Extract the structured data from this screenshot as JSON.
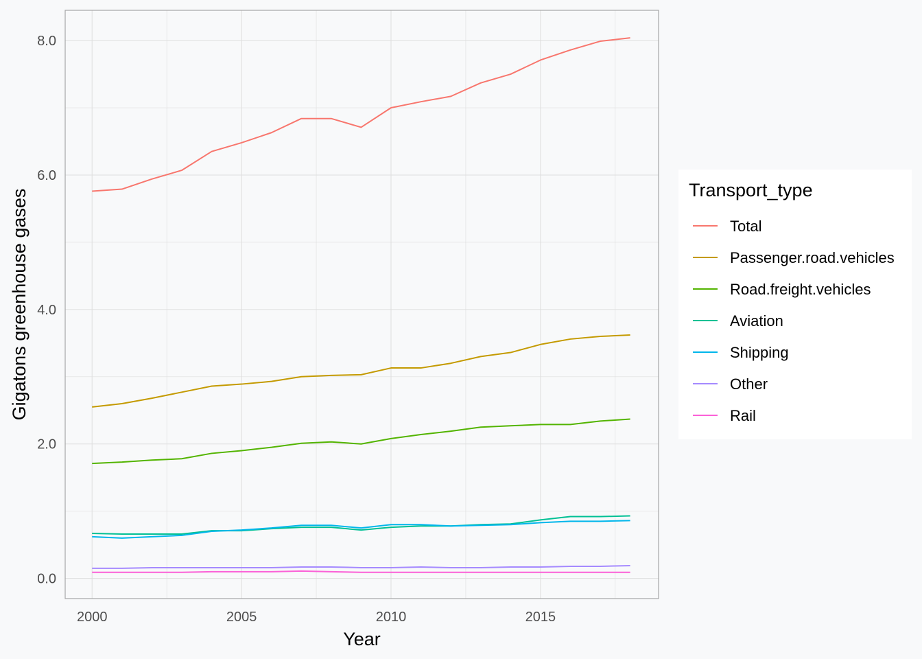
{
  "chart_data": {
    "type": "line",
    "title": "",
    "xlabel": "Year",
    "ylabel": "Gigatons greenhouse gases",
    "xlim": [
      1999.1,
      2018.95
    ],
    "ylim": [
      -0.3,
      8.45
    ],
    "x_ticks": [
      2000,
      2005,
      2010,
      2015
    ],
    "x_tick_labels": [
      "2000",
      "2005",
      "2010",
      "2015"
    ],
    "y_ticks": [
      0,
      2,
      4,
      6,
      8
    ],
    "y_tick_labels": [
      "0.0",
      "2.0",
      "4.0",
      "6.0",
      "8.0"
    ],
    "grid": true,
    "legend": {
      "title": "Transport_type",
      "position": "right"
    },
    "x": [
      2000,
      2001,
      2002,
      2003,
      2004,
      2005,
      2006,
      2007,
      2008,
      2009,
      2010,
      2011,
      2012,
      2013,
      2014,
      2015,
      2016,
      2017,
      2018
    ],
    "series": [
      {
        "name": "Total",
        "color": "#F8766D",
        "values": [
          5.76,
          5.79,
          5.94,
          6.07,
          6.35,
          6.48,
          6.63,
          6.84,
          6.84,
          6.71,
          7.0,
          7.09,
          7.17,
          7.37,
          7.5,
          7.71,
          7.86,
          7.99,
          8.04
        ]
      },
      {
        "name": "Passenger.road.vehicles",
        "color": "#C49A00",
        "values": [
          2.55,
          2.6,
          2.68,
          2.77,
          2.86,
          2.89,
          2.93,
          3.0,
          3.02,
          3.03,
          3.13,
          3.13,
          3.2,
          3.3,
          3.36,
          3.48,
          3.56,
          3.6,
          3.62
        ]
      },
      {
        "name": "Road.freight.vehicles",
        "color": "#53B400",
        "values": [
          1.71,
          1.73,
          1.76,
          1.78,
          1.86,
          1.9,
          1.95,
          2.01,
          2.03,
          2.0,
          2.08,
          2.14,
          2.19,
          2.25,
          2.27,
          2.29,
          2.29,
          2.34,
          2.37
        ]
      },
      {
        "name": "Aviation",
        "color": "#00C094",
        "values": [
          0.67,
          0.66,
          0.66,
          0.66,
          0.71,
          0.71,
          0.74,
          0.76,
          0.76,
          0.72,
          0.76,
          0.78,
          0.78,
          0.8,
          0.81,
          0.87,
          0.92,
          0.92,
          0.93
        ]
      },
      {
        "name": "Shipping",
        "color": "#00B6EB",
        "values": [
          0.62,
          0.6,
          0.62,
          0.64,
          0.7,
          0.72,
          0.75,
          0.79,
          0.79,
          0.75,
          0.8,
          0.8,
          0.78,
          0.79,
          0.8,
          0.83,
          0.85,
          0.85,
          0.86
        ]
      },
      {
        "name": "Other",
        "color": "#A58AFF",
        "values": [
          0.15,
          0.15,
          0.16,
          0.16,
          0.16,
          0.16,
          0.16,
          0.17,
          0.17,
          0.16,
          0.16,
          0.17,
          0.16,
          0.16,
          0.17,
          0.17,
          0.18,
          0.18,
          0.19
        ]
      },
      {
        "name": "Rail",
        "color": "#FB61D7",
        "values": [
          0.09,
          0.09,
          0.09,
          0.09,
          0.1,
          0.1,
          0.1,
          0.11,
          0.1,
          0.09,
          0.09,
          0.09,
          0.09,
          0.09,
          0.09,
          0.09,
          0.09,
          0.09,
          0.09
        ]
      }
    ],
    "colors": {
      "background": "#f8f9fa",
      "panel_border": "#a6a6a6",
      "grid": "#dedede",
      "legend_background": "#ffffff"
    }
  }
}
